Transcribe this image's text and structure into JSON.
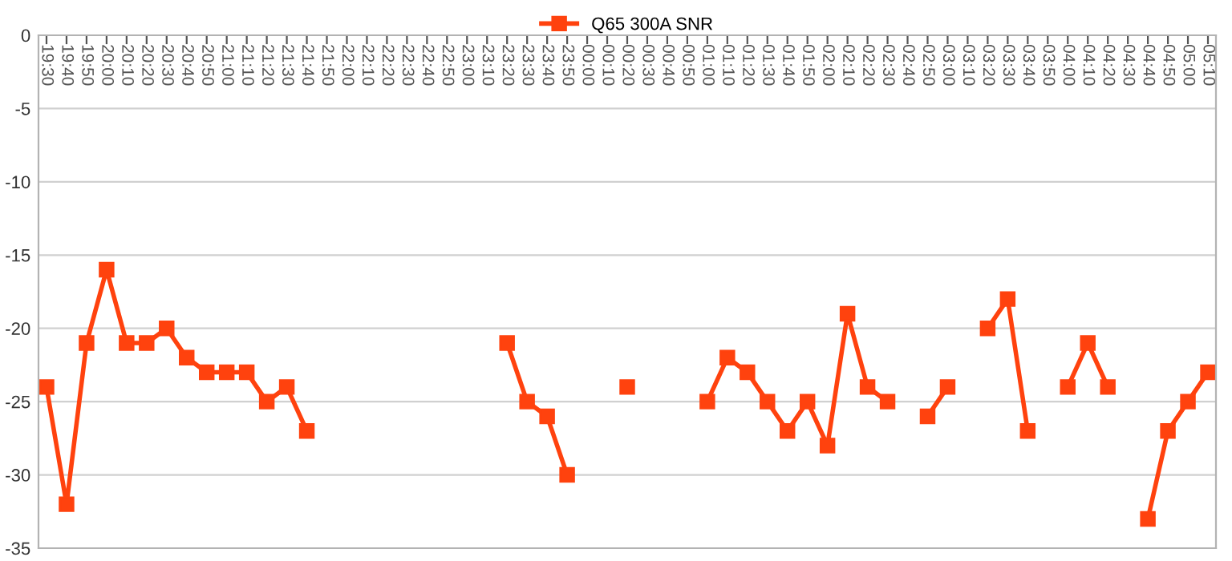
{
  "chart_data": {
    "type": "line",
    "categories": [
      "19:30",
      "19:40",
      "19:50",
      "20:00",
      "20:10",
      "20:20",
      "20:30",
      "20:40",
      "20:50",
      "21:00",
      "21:10",
      "21:20",
      "21:30",
      "21:40",
      "21:50",
      "22:00",
      "22:10",
      "22:20",
      "22:30",
      "22:40",
      "22:50",
      "23:00",
      "23:10",
      "23:20",
      "23:30",
      "23:40",
      "23:50",
      "00:00",
      "00:10",
      "00:20",
      "00:30",
      "00:40",
      "00:50",
      "01:00",
      "01:10",
      "01:20",
      "01:30",
      "01:40",
      "01:50",
      "02:00",
      "02:10",
      "02:20",
      "02:30",
      "02:40",
      "02:50",
      "03:00",
      "03:10",
      "03:20",
      "03:30",
      "03:40",
      "03:50",
      "04:00",
      "04:10",
      "04:20",
      "04:30",
      "04:40",
      "04:50",
      "05:00",
      "05:10"
    ],
    "series": [
      {
        "name": "Q65 300A SNR",
        "color": "#ff420e",
        "values": [
          -24,
          -32,
          -21,
          -16,
          -21,
          -21,
          -20,
          -22,
          -23,
          -23,
          -23,
          -25,
          -24,
          -27,
          null,
          null,
          null,
          null,
          null,
          null,
          null,
          null,
          null,
          -21,
          -25,
          -26,
          -30,
          null,
          null,
          -24,
          null,
          null,
          null,
          -25,
          -22,
          -23,
          -25,
          -27,
          -25,
          -28,
          -19,
          -24,
          -25,
          null,
          -26,
          -24,
          null,
          -20,
          -18,
          -27,
          null,
          -24,
          -21,
          -24,
          null,
          -33,
          -27,
          -25,
          -23
        ]
      }
    ],
    "ylim": [
      -35,
      0
    ],
    "yticks": [
      0,
      -5,
      -10,
      -15,
      -20,
      -25,
      -30,
      -35
    ],
    "grid": "y",
    "legend": "top",
    "marker": "square",
    "line_style": "solid"
  }
}
